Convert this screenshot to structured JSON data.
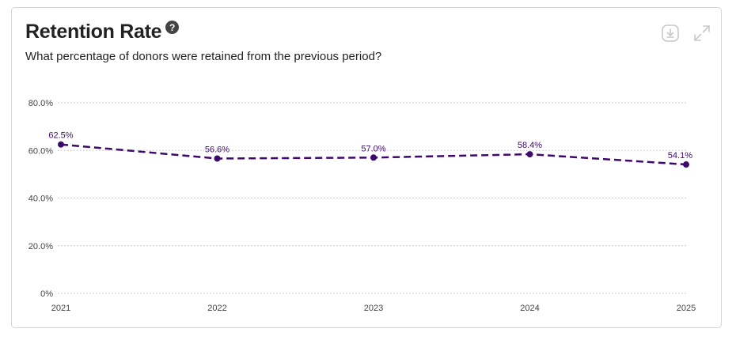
{
  "card": {
    "title": "Retention Rate",
    "help_glyph": "?",
    "subtitle": "What percentage of donors were retained from the previous period?",
    "tools": [
      {
        "name": "download-icon"
      },
      {
        "name": "expand-icon"
      }
    ]
  },
  "colors": {
    "series": "#3d0a6b",
    "grid": "#bdbdbd",
    "axis_text": "#444444",
    "tool_icon": "#c8c8c8"
  },
  "chart_data": {
    "type": "line",
    "x": [
      "2021",
      "2022",
      "2023",
      "2024",
      "2025"
    ],
    "series": [
      {
        "values": [
          62.5,
          56.6,
          57.0,
          58.4,
          54.1
        ],
        "data_labels": [
          "62.5%",
          "56.6%",
          "57.0%",
          "58.4%",
          "54.1%"
        ],
        "line_style": "dashed"
      }
    ],
    "yticks": [
      0,
      20,
      40,
      60,
      80
    ],
    "ytick_labels": [
      "0%",
      "20.0%",
      "40.0%",
      "60.0%",
      "80.0%"
    ],
    "ylim": [
      0,
      80
    ],
    "grid": true,
    "legend": "none"
  }
}
